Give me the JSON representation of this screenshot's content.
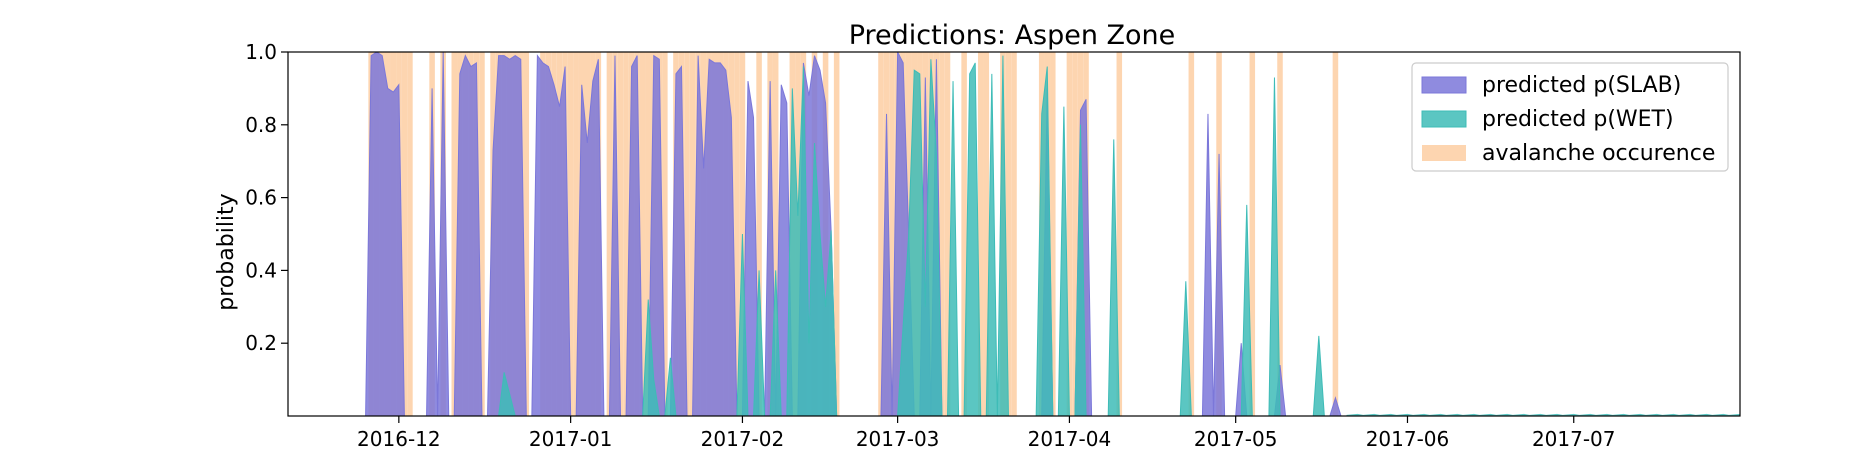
{
  "chart_data": {
    "type": "area",
    "title": "Predictions: Aspen Zone",
    "xlabel": "",
    "ylabel": "probability",
    "x_range": [
      "2016-11-11",
      "2017-07-31"
    ],
    "ylim": [
      0,
      1.0
    ],
    "y_ticks": [
      {
        "value": 0.2,
        "label": "0.2"
      },
      {
        "value": 0.4,
        "label": "0.4"
      },
      {
        "value": 0.6,
        "label": "0.6"
      },
      {
        "value": 0.8,
        "label": "0.8"
      },
      {
        "value": 1.0,
        "label": "1.0"
      }
    ],
    "x_ticks": [
      {
        "date": "2016-12-01",
        "label": "2016-12"
      },
      {
        "date": "2017-01-01",
        "label": "2017-01"
      },
      {
        "date": "2017-02-01",
        "label": "2017-02"
      },
      {
        "date": "2017-03-01",
        "label": "2017-03"
      },
      {
        "date": "2017-04-01",
        "label": "2017-04"
      },
      {
        "date": "2017-05-01",
        "label": "2017-05"
      },
      {
        "date": "2017-06-01",
        "label": "2017-06"
      },
      {
        "date": "2017-07-01",
        "label": "2017-07"
      }
    ],
    "legend_position": "top-right",
    "series": [
      {
        "name": "avalanche occurence",
        "color": "#fdd5b0",
        "kind": "events",
        "dates": [
          "2016-11-26",
          "2016-11-27",
          "2016-11-28",
          "2016-11-29",
          "2016-11-30",
          "2016-12-01",
          "2016-12-02",
          "2016-12-03",
          "2016-12-07",
          "2016-12-09",
          "2016-12-11",
          "2016-12-12",
          "2016-12-13",
          "2016-12-14",
          "2016-12-15",
          "2016-12-16",
          "2016-12-18",
          "2016-12-19",
          "2016-12-20",
          "2016-12-21",
          "2016-12-22",
          "2016-12-23",
          "2016-12-24",
          "2016-12-27",
          "2016-12-28",
          "2016-12-29",
          "2016-12-30",
          "2016-12-31",
          "2017-01-01",
          "2017-01-02",
          "2017-01-03",
          "2017-01-04",
          "2017-01-05",
          "2017-01-06",
          "2017-01-08",
          "2017-01-09",
          "2017-01-10",
          "2017-01-11",
          "2017-01-12",
          "2017-01-13",
          "2017-01-14",
          "2017-01-15",
          "2017-01-16",
          "2017-01-17",
          "2017-01-18",
          "2017-01-20",
          "2017-01-21",
          "2017-01-22",
          "2017-01-23",
          "2017-01-24",
          "2017-01-25",
          "2017-01-26",
          "2017-01-27",
          "2017-01-28",
          "2017-01-29",
          "2017-01-30",
          "2017-01-31",
          "2017-02-01",
          "2017-02-04",
          "2017-02-06",
          "2017-02-07",
          "2017-02-10",
          "2017-02-11",
          "2017-02-12",
          "2017-02-14",
          "2017-02-16",
          "2017-02-18",
          "2017-02-26",
          "2017-02-27",
          "2017-02-28",
          "2017-03-01",
          "2017-03-02",
          "2017-03-03",
          "2017-03-04",
          "2017-03-05",
          "2017-03-06",
          "2017-03-07",
          "2017-03-08",
          "2017-03-09",
          "2017-03-10",
          "2017-03-13",
          "2017-03-16",
          "2017-03-17",
          "2017-03-20",
          "2017-03-21",
          "2017-03-22",
          "2017-03-27",
          "2017-03-28",
          "2017-03-29",
          "2017-04-01",
          "2017-04-02",
          "2017-04-03",
          "2017-04-04",
          "2017-04-10",
          "2017-04-23",
          "2017-04-28",
          "2017-05-04",
          "2017-05-09",
          "2017-05-19"
        ]
      },
      {
        "name": "predicted p(SLAB)",
        "color": "#7b77d9",
        "points": [
          [
            "2016-11-25",
            0
          ],
          [
            "2016-11-26",
            0.99
          ],
          [
            "2016-11-27",
            1.0
          ],
          [
            "2016-11-28",
            0.99
          ],
          [
            "2016-11-29",
            0.9
          ],
          [
            "2016-11-30",
            0.89
          ],
          [
            "2016-12-01",
            0.91
          ],
          [
            "2016-12-02",
            0
          ],
          [
            "2016-12-06",
            0
          ],
          [
            "2016-12-07",
            0.9
          ],
          [
            "2016-12-08",
            0
          ],
          [
            "2016-12-09",
            1.0
          ],
          [
            "2016-12-10",
            0
          ],
          [
            "2016-12-11",
            0
          ],
          [
            "2016-12-12",
            0.94
          ],
          [
            "2016-12-13",
            0.99
          ],
          [
            "2016-12-14",
            0.96
          ],
          [
            "2016-12-15",
            0.97
          ],
          [
            "2016-12-16",
            0
          ],
          [
            "2016-12-17",
            0
          ],
          [
            "2016-12-18",
            0.73
          ],
          [
            "2016-12-19",
            0.99
          ],
          [
            "2016-12-20",
            0.99
          ],
          [
            "2016-12-21",
            0.98
          ],
          [
            "2016-12-22",
            0.99
          ],
          [
            "2016-12-23",
            0.98
          ],
          [
            "2016-12-24",
            0
          ],
          [
            "2016-12-25",
            0
          ],
          [
            "2016-12-26",
            0.99
          ],
          [
            "2016-12-27",
            0.97
          ],
          [
            "2016-12-28",
            0.96
          ],
          [
            "2016-12-29",
            0.91
          ],
          [
            "2016-12-30",
            0.85
          ],
          [
            "2016-12-31",
            0.96
          ],
          [
            "2017-01-01",
            0
          ],
          [
            "2017-01-02",
            0
          ],
          [
            "2017-01-03",
            0.91
          ],
          [
            "2017-01-04",
            0.75
          ],
          [
            "2017-01-05",
            0.92
          ],
          [
            "2017-01-06",
            0.98
          ],
          [
            "2017-01-07",
            0
          ],
          [
            "2017-01-08",
            0
          ],
          [
            "2017-01-09",
            0.99
          ],
          [
            "2017-01-10",
            0
          ],
          [
            "2017-01-11",
            0
          ],
          [
            "2017-01-12",
            0.96
          ],
          [
            "2017-01-13",
            0.99
          ],
          [
            "2017-01-14",
            0
          ],
          [
            "2017-01-15",
            0
          ],
          [
            "2017-01-16",
            0.99
          ],
          [
            "2017-01-17",
            0.98
          ],
          [
            "2017-01-18",
            0
          ],
          [
            "2017-01-19",
            0
          ],
          [
            "2017-01-20",
            0.94
          ],
          [
            "2017-01-21",
            0.96
          ],
          [
            "2017-01-22",
            0
          ],
          [
            "2017-01-23",
            0
          ],
          [
            "2017-01-24",
            0.99
          ],
          [
            "2017-01-25",
            0.68
          ],
          [
            "2017-01-26",
            0.98
          ],
          [
            "2017-01-27",
            0.97
          ],
          [
            "2017-01-28",
            0.97
          ],
          [
            "2017-01-29",
            0.95
          ],
          [
            "2017-01-30",
            0.82
          ],
          [
            "2017-01-31",
            0
          ],
          [
            "2017-02-01",
            0
          ],
          [
            "2017-02-02",
            0.92
          ],
          [
            "2017-02-03",
            0.82
          ],
          [
            "2017-02-04",
            0
          ],
          [
            "2017-02-05",
            0
          ],
          [
            "2017-02-06",
            0.92
          ],
          [
            "2017-02-07",
            0
          ],
          [
            "2017-02-08",
            0.91
          ],
          [
            "2017-02-09",
            0.86
          ],
          [
            "2017-02-10",
            0
          ],
          [
            "2017-02-11",
            0
          ],
          [
            "2017-02-12",
            0.97
          ],
          [
            "2017-02-13",
            0.88
          ],
          [
            "2017-02-14",
            0.99
          ],
          [
            "2017-02-15",
            0.95
          ],
          [
            "2017-02-16",
            0.86
          ],
          [
            "2017-02-17",
            0.51
          ],
          [
            "2017-02-18",
            0
          ],
          [
            "2017-02-26",
            0
          ],
          [
            "2017-02-27",
            0.83
          ],
          [
            "2017-02-28",
            0
          ],
          [
            "2017-03-01",
            1.0
          ],
          [
            "2017-03-02",
            0.97
          ],
          [
            "2017-03-03",
            0.5
          ],
          [
            "2017-03-04",
            0
          ],
          [
            "2017-03-05",
            0
          ],
          [
            "2017-03-06",
            0.93
          ],
          [
            "2017-03-07",
            0
          ],
          [
            "2017-03-08",
            0.98
          ],
          [
            "2017-03-09",
            0
          ],
          [
            "2017-03-27",
            0
          ],
          [
            "2017-03-28",
            0.9
          ],
          [
            "2017-03-29",
            0
          ],
          [
            "2017-04-02",
            0
          ],
          [
            "2017-04-03",
            0.84
          ],
          [
            "2017-04-04",
            0.87
          ],
          [
            "2017-04-05",
            0
          ],
          [
            "2017-04-25",
            0
          ],
          [
            "2017-04-26",
            0.83
          ],
          [
            "2017-04-27",
            0
          ],
          [
            "2017-04-28",
            0.72
          ],
          [
            "2017-04-29",
            0
          ],
          [
            "2017-05-01",
            0
          ],
          [
            "2017-05-02",
            0.2
          ],
          [
            "2017-05-03",
            0
          ],
          [
            "2017-05-08",
            0
          ],
          [
            "2017-05-09",
            0.14
          ],
          [
            "2017-05-10",
            0
          ],
          [
            "2017-05-18",
            0
          ],
          [
            "2017-05-19",
            0.05
          ],
          [
            "2017-05-20",
            0
          ]
        ]
      },
      {
        "name": "predicted p(WET)",
        "color": "#3ebcb7",
        "points": [
          [
            "2016-12-19",
            0
          ],
          [
            "2016-12-20",
            0.12
          ],
          [
            "2016-12-21",
            0.06
          ],
          [
            "2016-12-22",
            0
          ],
          [
            "2017-01-14",
            0
          ],
          [
            "2017-01-15",
            0.32
          ],
          [
            "2017-01-16",
            0.1
          ],
          [
            "2017-01-17",
            0
          ],
          [
            "2017-01-18",
            0
          ],
          [
            "2017-01-19",
            0.16
          ],
          [
            "2017-01-20",
            0
          ],
          [
            "2017-01-31",
            0
          ],
          [
            "2017-02-01",
            0.5
          ],
          [
            "2017-02-02",
            0
          ],
          [
            "2017-02-03",
            0
          ],
          [
            "2017-02-04",
            0.4
          ],
          [
            "2017-02-05",
            0
          ],
          [
            "2017-02-06",
            0
          ],
          [
            "2017-02-07",
            0.4
          ],
          [
            "2017-02-08",
            0
          ],
          [
            "2017-02-09",
            0
          ],
          [
            "2017-02-10",
            0.9
          ],
          [
            "2017-02-11",
            0.55
          ],
          [
            "2017-02-12",
            0.96
          ],
          [
            "2017-02-13",
            0.2
          ],
          [
            "2017-02-14",
            0.75
          ],
          [
            "2017-02-15",
            0.5
          ],
          [
            "2017-02-16",
            0.3
          ],
          [
            "2017-02-17",
            0.51
          ],
          [
            "2017-02-18",
            0
          ],
          [
            "2017-03-01",
            0
          ],
          [
            "2017-03-02",
            0.25
          ],
          [
            "2017-03-03",
            0.5
          ],
          [
            "2017-03-04",
            0.95
          ],
          [
            "2017-03-05",
            0.94
          ],
          [
            "2017-03-06",
            0.3
          ],
          [
            "2017-03-07",
            0.98
          ],
          [
            "2017-03-08",
            0.72
          ],
          [
            "2017-03-09",
            0
          ],
          [
            "2017-03-10",
            0
          ],
          [
            "2017-03-11",
            0.92
          ],
          [
            "2017-03-12",
            0
          ],
          [
            "2017-03-13",
            0
          ],
          [
            "2017-03-14",
            0.94
          ],
          [
            "2017-03-15",
            0.97
          ],
          [
            "2017-03-16",
            0
          ],
          [
            "2017-03-17",
            0
          ],
          [
            "2017-03-18",
            0.94
          ],
          [
            "2017-03-19",
            0
          ],
          [
            "2017-03-20",
            0.99
          ],
          [
            "2017-03-21",
            0
          ],
          [
            "2017-03-26",
            0
          ],
          [
            "2017-03-27",
            0.83
          ],
          [
            "2017-03-28",
            0.96
          ],
          [
            "2017-03-29",
            0
          ],
          [
            "2017-03-30",
            0
          ],
          [
            "2017-03-31",
            0.85
          ],
          [
            "2017-04-01",
            0
          ],
          [
            "2017-04-02",
            0
          ],
          [
            "2017-04-03",
            0.8
          ],
          [
            "2017-04-04",
            0
          ],
          [
            "2017-04-08",
            0
          ],
          [
            "2017-04-09",
            0.76
          ],
          [
            "2017-04-10",
            0
          ],
          [
            "2017-04-21",
            0
          ],
          [
            "2017-04-22",
            0.37
          ],
          [
            "2017-04-23",
            0
          ],
          [
            "2017-05-02",
            0
          ],
          [
            "2017-05-03",
            0.58
          ],
          [
            "2017-05-04",
            0
          ],
          [
            "2017-05-07",
            0
          ],
          [
            "2017-05-08",
            0.93
          ],
          [
            "2017-05-09",
            0
          ],
          [
            "2017-05-15",
            0
          ],
          [
            "2017-05-16",
            0.22
          ],
          [
            "2017-05-17",
            0
          ]
        ]
      }
    ]
  }
}
